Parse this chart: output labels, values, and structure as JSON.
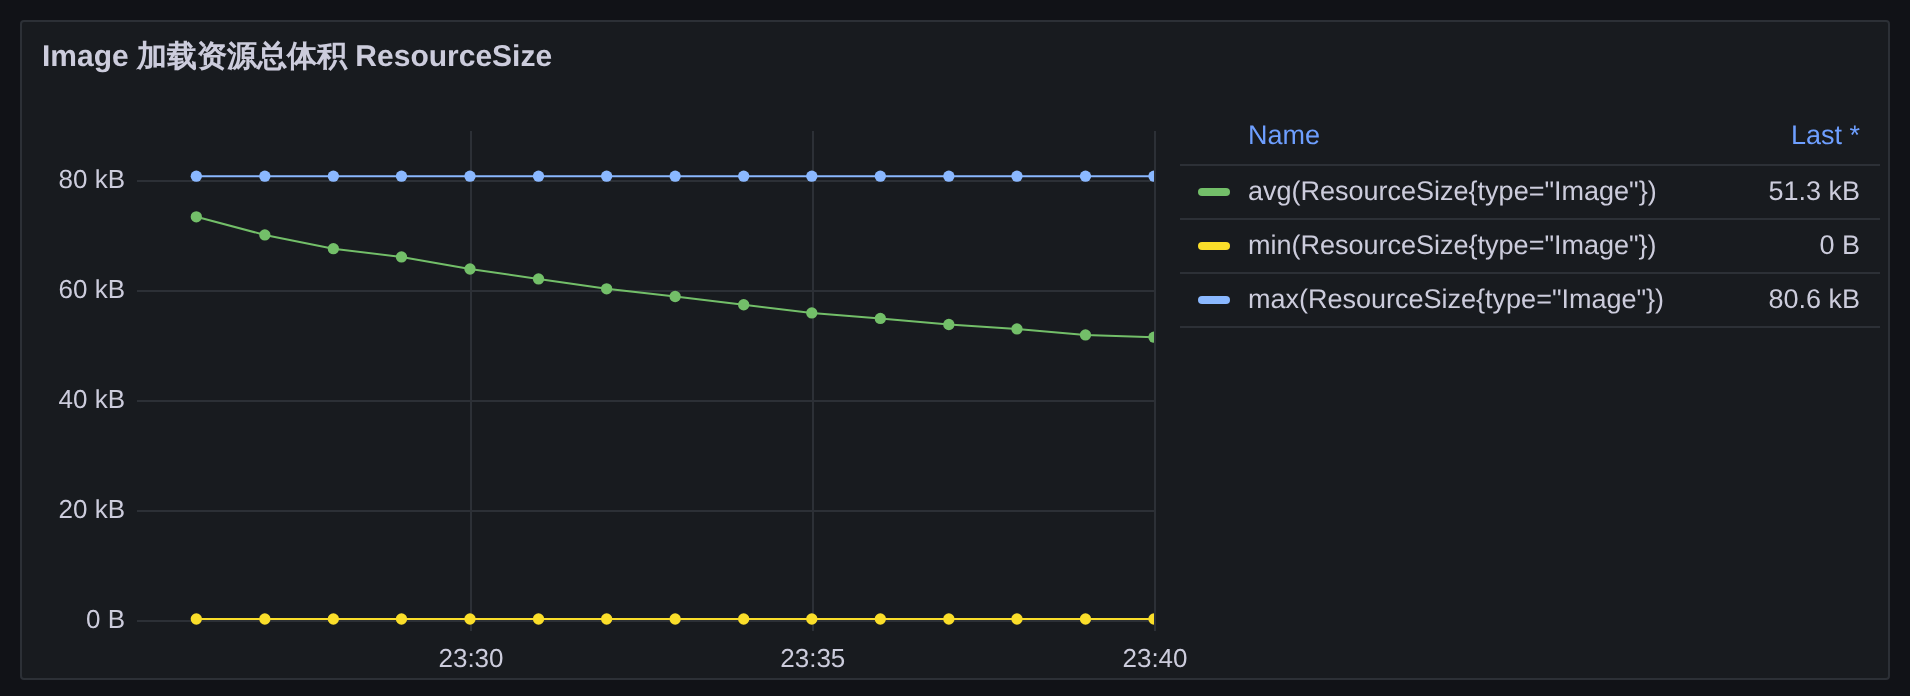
{
  "chart_data": {
    "type": "line",
    "title": "Image 加载资源总体积 ResourceSize",
    "x": [
      23.4333,
      23.45,
      23.4667,
      23.4833,
      23.5,
      23.5167,
      23.5333,
      23.55,
      23.5667,
      23.5833,
      23.6,
      23.6167,
      23.6333,
      23.65,
      23.6667
    ],
    "series": [
      {
        "name": "avg(ResourceSize{type=\"Image\"})",
        "color": "#73bf69",
        "values": [
          73.2,
          69.9,
          67.4,
          65.9,
          63.7,
          61.9,
          60.1,
          58.7,
          57.2,
          55.7,
          54.7,
          53.6,
          52.8,
          51.7,
          51.3
        ]
      },
      {
        "name": "min(ResourceSize{type=\"Image\"})",
        "color": "#fade2a",
        "values": [
          0,
          0,
          0,
          0,
          0,
          0,
          0,
          0,
          0,
          0,
          0,
          0,
          0,
          0,
          0
        ]
      },
      {
        "name": "max(ResourceSize{type=\"Image\"})",
        "color": "#8ab8ff",
        "values": [
          80.6,
          80.6,
          80.6,
          80.6,
          80.6,
          80.6,
          80.6,
          80.6,
          80.6,
          80.6,
          80.6,
          80.6,
          80.6,
          80.6,
          80.6
        ]
      }
    ],
    "xlim": [
      23.4186,
      23.6667
    ],
    "xticks": [
      {
        "value": 23.5,
        "label": "23:30"
      },
      {
        "value": 23.5833,
        "label": "23:35"
      },
      {
        "value": 23.6667,
        "label": "23:40"
      }
    ],
    "ylim": [
      -2,
      89
    ],
    "yticks": [
      {
        "value": 0,
        "label": "0 B"
      },
      {
        "value": 20,
        "label": "20 kB"
      },
      {
        "value": 40,
        "label": "40 kB"
      },
      {
        "value": 60,
        "label": "60 kB"
      },
      {
        "value": 80,
        "label": "80 kB"
      }
    ],
    "annotations": [
      "Name",
      "Last *",
      "51.3 kB",
      "0 B",
      "80.6 kB"
    ],
    "grid": true,
    "legend": "right",
    "marker": "circle",
    "line_style": "solid"
  }
}
